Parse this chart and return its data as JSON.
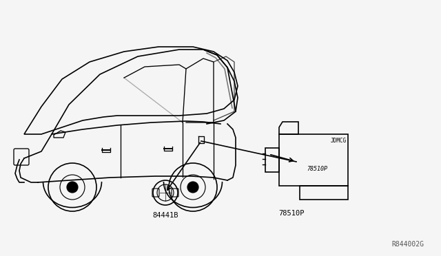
{
  "background_color": "#f5f5f5",
  "title": "",
  "diagram_ref": "R844002G",
  "part1_label": "84441B",
  "part2_label": "78510P",
  "fig_width": 6.4,
  "fig_height": 3.72,
  "dpi": 100
}
